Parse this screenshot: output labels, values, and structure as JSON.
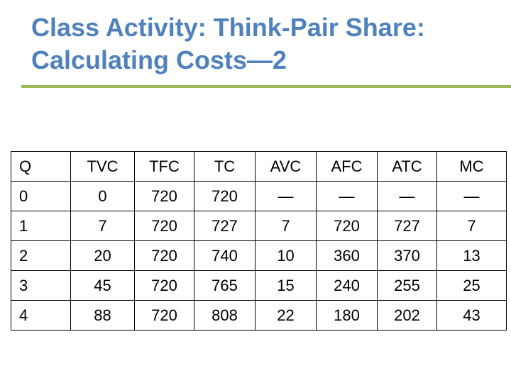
{
  "slide": {
    "title_line1": "Class Activity: Think-Pair Share:",
    "title_line2": "Calculating Costs—2"
  },
  "colors": {
    "title": "#4f81bd",
    "rule": "#9bbb59",
    "border": "#000000"
  },
  "table": {
    "headers": [
      "Q",
      "TVC",
      "TFC",
      "TC",
      "AVC",
      "AFC",
      "ATC",
      "MC"
    ],
    "rows": [
      [
        "0",
        "0",
        "720",
        "720",
        "—",
        "—",
        "—",
        "—"
      ],
      [
        "1",
        "7",
        "720",
        "727",
        "7",
        "720",
        "727",
        "7"
      ],
      [
        "2",
        "20",
        "720",
        "740",
        "10",
        "360",
        "370",
        "13"
      ],
      [
        "3",
        "45",
        "720",
        "765",
        "15",
        "240",
        "255",
        "25"
      ],
      [
        "4",
        "88",
        "720",
        "808",
        "22",
        "180",
        "202",
        "43"
      ]
    ]
  }
}
